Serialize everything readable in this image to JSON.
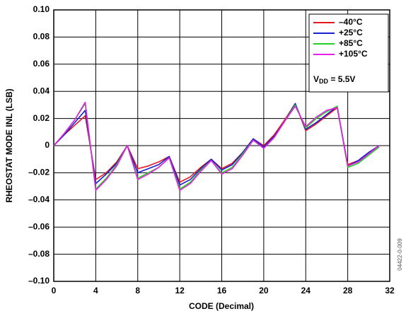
{
  "chart_data": {
    "type": "line",
    "y_label": "RHEOSTAT MODE INL (LSB)",
    "x_label": "CODE (Decimal)",
    "annotation": {
      "base": "V",
      "subscript": "DD",
      "text": " = 5.5V"
    },
    "side_note": "04422-0-009",
    "x": [
      0,
      1,
      2,
      3,
      4,
      5,
      6,
      7,
      8,
      9,
      10,
      11,
      12,
      13,
      14,
      15,
      16,
      17,
      18,
      19,
      20,
      21,
      22,
      23,
      24,
      25,
      26,
      27,
      28,
      29,
      30,
      31
    ],
    "series": [
      {
        "name": "–40°C",
        "color": "#e8141e",
        "values": [
          0,
          0.008,
          0.015,
          0.022,
          -0.025,
          -0.02,
          -0.012,
          0,
          -0.017,
          -0.015,
          -0.012,
          -0.008,
          -0.027,
          -0.023,
          -0.016,
          -0.01,
          -0.017,
          -0.013,
          -0.005,
          0.005,
          0,
          0.008,
          0.019,
          0.031,
          0.011,
          0.016,
          0.022,
          0.028,
          -0.014,
          -0.011,
          -0.005,
          0
        ]
      },
      {
        "name": "+25°C",
        "color": "#1420d2",
        "values": [
          0,
          0.008,
          0.017,
          0.026,
          -0.028,
          -0.021,
          -0.013,
          0,
          -0.02,
          -0.017,
          -0.014,
          -0.008,
          -0.029,
          -0.025,
          -0.017,
          -0.01,
          -0.018,
          -0.014,
          -0.005,
          0.005,
          -0.001,
          0.007,
          0.018,
          0.031,
          0.012,
          0.017,
          0.023,
          0.029,
          -0.015,
          -0.011,
          -0.005,
          0
        ]
      },
      {
        "name": "+85°C",
        "color": "#22d21e",
        "values": [
          0,
          0.009,
          0.019,
          0.031,
          -0.032,
          -0.024,
          -0.014,
          0,
          -0.024,
          -0.02,
          -0.016,
          -0.009,
          -0.032,
          -0.027,
          -0.018,
          -0.011,
          -0.02,
          -0.016,
          -0.006,
          0.004,
          -0.002,
          0.006,
          0.018,
          0.03,
          0.013,
          0.02,
          0.025,
          0.029,
          -0.016,
          -0.013,
          -0.007,
          -0.001
        ]
      },
      {
        "name": "+105°C",
        "color": "#e61ee6",
        "values": [
          0,
          0.009,
          0.019,
          0.032,
          -0.033,
          -0.025,
          -0.015,
          0,
          -0.025,
          -0.021,
          -0.016,
          -0.009,
          -0.033,
          -0.028,
          -0.019,
          -0.011,
          -0.021,
          -0.017,
          -0.007,
          0.004,
          -0.002,
          0.006,
          0.018,
          0.029,
          0.014,
          0.021,
          0.026,
          0.028,
          -0.015,
          -0.012,
          -0.006,
          0
        ]
      }
    ],
    "xlim": [
      0,
      32
    ],
    "xticks": [
      0,
      4,
      8,
      12,
      16,
      20,
      24,
      28,
      32
    ],
    "ylim": [
      -0.1,
      0.1
    ],
    "yticks": [
      {
        "value": -0.1,
        "label": "–0.10"
      },
      {
        "value": -0.08,
        "label": "–0.08"
      },
      {
        "value": -0.06,
        "label": "–0.06"
      },
      {
        "value": -0.04,
        "label": "–0.04"
      },
      {
        "value": -0.02,
        "label": "–0.02"
      },
      0,
      0.02,
      0.04,
      0.06,
      0.08,
      {
        "value": 0.1,
        "label": "0.10"
      }
    ],
    "grid": true,
    "legend": "upper right"
  }
}
